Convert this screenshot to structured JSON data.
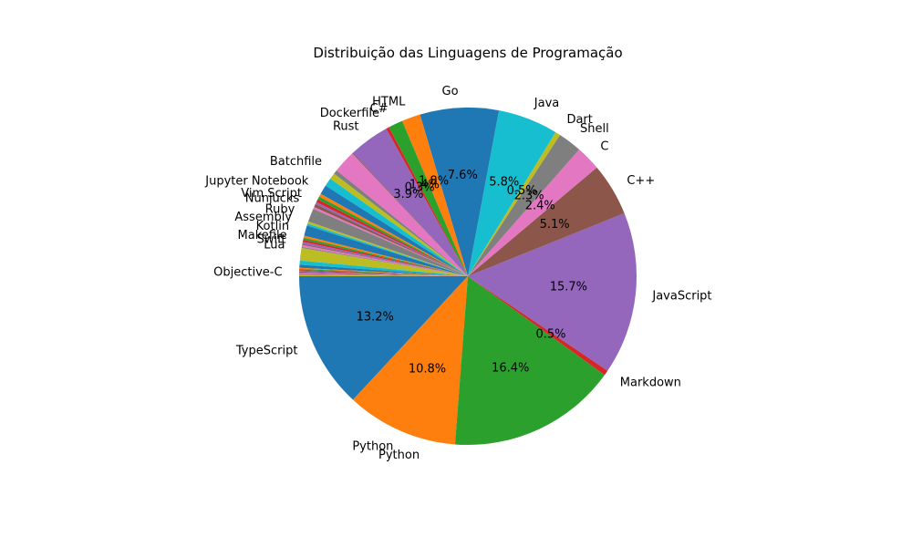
{
  "chart_data": {
    "type": "pie",
    "title": "Distribuição das Linguagens de Programação",
    "start_angle": 180,
    "counterclock": true,
    "slices": [
      {
        "label": "TypeScript",
        "value": 13.2,
        "color": "#1f77b4"
      },
      {
        "label": "Python",
        "value": 10.8,
        "color": "#ff7f0e"
      },
      {
        "label": "",
        "value": 16.4,
        "color": "#2ca02c"
      },
      {
        "label": "Markdown",
        "value": 0.5,
        "color": "#d62728"
      },
      {
        "label": "JavaScript",
        "value": 15.7,
        "color": "#9467bd"
      },
      {
        "label": "C++",
        "value": 5.1,
        "color": "#8c564b"
      },
      {
        "label": "C",
        "value": 2.4,
        "color": "#e377c2"
      },
      {
        "label": "Shell",
        "value": 2.3,
        "color": "#7f7f7f"
      },
      {
        "label": "Dart",
        "value": 0.5,
        "color": "#bcbd22"
      },
      {
        "label": "Java",
        "value": 5.8,
        "color": "#17becf"
      },
      {
        "label": "Go",
        "value": 7.6,
        "color": "#1f77b4"
      },
      {
        "label": "HTML",
        "value": 1.8,
        "color": "#ff7f0e"
      },
      {
        "label": "C#",
        "value": 1.4,
        "color": "#2ca02c"
      },
      {
        "label": "Dockerfile",
        "value": 0.3,
        "color": "#d62728"
      },
      {
        "label": "Rust",
        "value": 3.9,
        "color": "#9467bd"
      },
      {
        "label": "",
        "value": 0.1,
        "color": "#8c564b"
      },
      {
        "label": "",
        "value": 2.2,
        "color": "#e377c2"
      },
      {
        "label": "Batchfile",
        "value": 0.4,
        "color": "#7f7f7f"
      },
      {
        "label": "",
        "value": 0.6,
        "color": "#bcbd22"
      },
      {
        "label": "",
        "value": 0.8,
        "color": "#17becf"
      },
      {
        "label": "Jupyter Notebook",
        "value": 0.9,
        "color": "#1f77b4"
      },
      {
        "label": "",
        "value": 0.3,
        "color": "#ff7f0e"
      },
      {
        "label": "",
        "value": 0.3,
        "color": "#2ca02c"
      },
      {
        "label": "Vim Script",
        "value": 0.3,
        "color": "#d62728"
      },
      {
        "label": "",
        "value": 0.2,
        "color": "#9467bd"
      },
      {
        "label": "Nunjucks",
        "value": 0.3,
        "color": "#8c564b"
      },
      {
        "label": "",
        "value": 0.2,
        "color": "#e377c2"
      },
      {
        "label": "Ruby",
        "value": 1.3,
        "color": "#7f7f7f"
      },
      {
        "label": "Assembly",
        "value": 0.2,
        "color": "#bcbd22"
      },
      {
        "label": "",
        "value": 0.2,
        "color": "#17becf"
      },
      {
        "label": "Kotlin",
        "value": 1.0,
        "color": "#1f77b4"
      },
      {
        "label": "",
        "value": 0.2,
        "color": "#ff7f0e"
      },
      {
        "label": "Makefile",
        "value": 0.2,
        "color": "#2ca02c"
      },
      {
        "label": "",
        "value": 0.2,
        "color": "#d62728"
      },
      {
        "label": "Swift",
        "value": 0.2,
        "color": "#9467bd"
      },
      {
        "label": "",
        "value": 0.1,
        "color": "#8c564b"
      },
      {
        "label": "",
        "value": 0.2,
        "color": "#e377c2"
      },
      {
        "label": "Lua",
        "value": 0.1,
        "color": "#7f7f7f"
      },
      {
        "label": "",
        "value": 1.2,
        "color": "#bcbd22"
      },
      {
        "label": "",
        "value": 0.4,
        "color": "#17becf"
      },
      {
        "label": "",
        "value": 0.3,
        "color": "#1f77b4"
      },
      {
        "label": "",
        "value": 0.1,
        "color": "#ff7f0e"
      },
      {
        "label": "",
        "value": 0.1,
        "color": "#2ca02c"
      },
      {
        "label": "",
        "value": 0.1,
        "color": "#d62728"
      },
      {
        "label": "",
        "value": 0.1,
        "color": "#9467bd"
      },
      {
        "label": "Objective-C",
        "value": 0.1,
        "color": "#8c564b"
      },
      {
        "label": "",
        "value": 0.1,
        "color": "#e377c2"
      },
      {
        "label": "",
        "value": 0.1,
        "color": "#7f7f7f"
      },
      {
        "label": "",
        "value": 0.1,
        "color": "#bcbd22"
      }
    ],
    "visible_pct_labels": [
      "13.2%",
      "10.8%",
      "16.4%",
      "0.5%",
      "15.7%",
      "5.1%",
      "2.4%",
      "2.3%",
      "0.5%",
      "5.8%",
      "7.6%",
      "1.8%",
      "1.4%",
      "0.3%",
      "3.9%"
    ],
    "extra_slice_labels": [
      "Python"
    ],
    "legend": "none"
  }
}
